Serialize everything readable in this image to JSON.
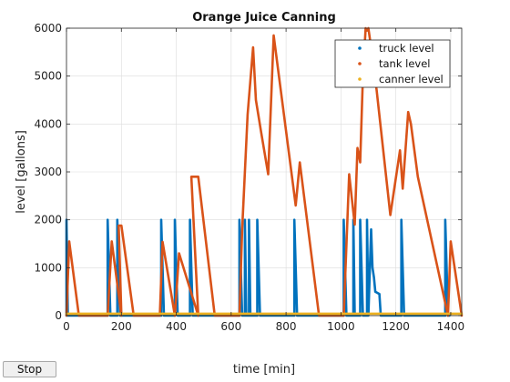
{
  "chart_data": {
    "type": "line",
    "title": "Orange Juice Canning",
    "xlabel": "time [min]",
    "ylabel": "level [gallons]",
    "xlim": [
      0,
      1440
    ],
    "ylim": [
      0,
      6000
    ],
    "xticks": [
      0,
      200,
      400,
      600,
      800,
      1000,
      1200,
      1400
    ],
    "yticks": [
      0,
      1000,
      2000,
      3000,
      4000,
      5000,
      6000
    ],
    "grid": true,
    "legend_position": "top-right",
    "series": [
      {
        "name": "truck level",
        "color": "#0072bd",
        "marker": "dot",
        "x": [
          0,
          0,
          5,
          10,
          12,
          150,
          150,
          160,
          165,
          170,
          185,
          185,
          195,
          200,
          345,
          345,
          355,
          360,
          395,
          395,
          405,
          410,
          450,
          450,
          460,
          465,
          630,
          630,
          640,
          645,
          650,
          650,
          655,
          660,
          665,
          665,
          670,
          675,
          695,
          695,
          705,
          710,
          830,
          830,
          840,
          845,
          1010,
          1010,
          1020,
          1025,
          1045,
          1045,
          1050,
          1055,
          1070,
          1070,
          1080,
          1090,
          1095,
          1095,
          1100,
          1110,
          1115,
          1120,
          1125,
          1140,
          1145,
          1150,
          1220,
          1220,
          1230,
          1235,
          1380,
          1380,
          1390,
          1395
        ],
        "y": [
          0,
          2000,
          0,
          0,
          0,
          0,
          2000,
          0,
          0,
          0,
          0,
          2000,
          0,
          0,
          0,
          2000,
          0,
          0,
          0,
          2000,
          0,
          0,
          0,
          2000,
          0,
          0,
          0,
          2000,
          0,
          0,
          0,
          2000,
          0,
          0,
          0,
          2000,
          0,
          0,
          0,
          2000,
          0,
          0,
          0,
          2000,
          0,
          0,
          0,
          2000,
          0,
          0,
          0,
          2000,
          0,
          0,
          0,
          2000,
          0,
          0,
          0,
          2000,
          0,
          1800,
          1000,
          800,
          500,
          450,
          0,
          0,
          0,
          2000,
          0,
          0,
          0,
          2000,
          0,
          0
        ]
      },
      {
        "name": "tank level",
        "color": "#d95319",
        "marker": "dot",
        "x": [
          0,
          10,
          45,
          150,
          165,
          200,
          190,
          200,
          245,
          340,
          350,
          395,
          395,
          410,
          480,
          455,
          480,
          540,
          630,
          640,
          660,
          680,
          690,
          710,
          735,
          755,
          835,
          850,
          920,
          1010,
          1030,
          1050,
          1060,
          1070,
          1080,
          1090,
          1095,
          1100,
          1105,
          1130,
          1180,
          1215,
          1225,
          1245,
          1255,
          1280,
          1390,
          1400,
          1440
        ],
        "y": [
          0,
          1550,
          0,
          0,
          1550,
          0,
          1880,
          1880,
          0,
          0,
          1540,
          0,
          0,
          1300,
          0,
          2900,
          2900,
          0,
          0,
          1800,
          4200,
          5600,
          4500,
          3800,
          2950,
          5850,
          2300,
          3200,
          0,
          0,
          2950,
          1900,
          3500,
          3200,
          5000,
          6000,
          5950,
          6000,
          5800,
          4700,
          2100,
          3450,
          2650,
          4250,
          4000,
          2900,
          0,
          1550,
          0
        ]
      },
      {
        "name": "canner level",
        "color": "#edb120",
        "marker": "dot",
        "x": [
          0,
          1440
        ],
        "y": [
          40,
          40
        ]
      }
    ]
  },
  "controls": {
    "stop_label": "Stop"
  }
}
